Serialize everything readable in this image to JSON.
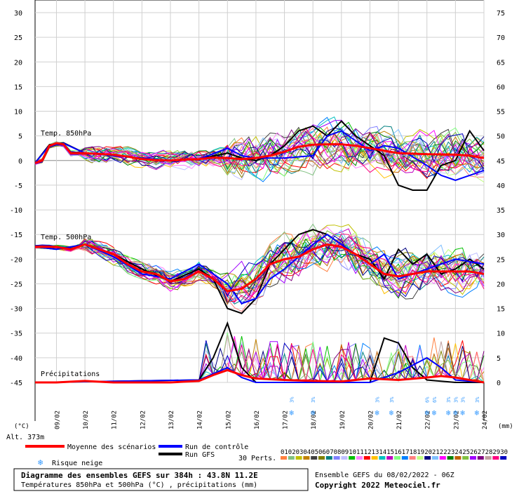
{
  "chart_data": {
    "type": "line",
    "left_axis": {
      "ticks": [
        30,
        25,
        20,
        15,
        10,
        5,
        0,
        -5,
        -10,
        -15,
        -20,
        -25,
        -30,
        -35,
        -40,
        -45
      ],
      "unit": "(°C)",
      "range": [
        -45,
        30
      ]
    },
    "right_axis": {
      "ticks": [
        75,
        70,
        65,
        60,
        55,
        50,
        45,
        40,
        35,
        30,
        25,
        20,
        15,
        10,
        5,
        0
      ],
      "unit": "(mm)",
      "range": [
        0,
        75
      ]
    },
    "dates": [
      "09/02",
      "10/02",
      "11/02",
      "12/02",
      "13/02",
      "14/02",
      "15/02",
      "16/02",
      "17/02",
      "18/02",
      "19/02",
      "20/02",
      "21/02",
      "22/02",
      "23/02",
      "24/02"
    ],
    "date_positions_days": [
      1,
      2,
      3,
      4,
      5,
      6,
      7,
      8,
      9,
      10,
      11,
      12,
      13,
      14,
      15,
      16
    ],
    "x_range_days": [
      0.25,
      16
    ],
    "panel_labels": {
      "t850": "Temp. 850hPa",
      "t500": "Temp. 500hPa",
      "precip": "Précipitations"
    },
    "series": [
      {
        "name": "Moyenne des scénarios",
        "color": "#ff0000",
        "t850": [
          [
            0.25,
            -0.5
          ],
          [
            0.5,
            0
          ],
          [
            0.75,
            3
          ],
          [
            1.0,
            3.5
          ],
          [
            1.25,
            3.3
          ],
          [
            1.5,
            1.5
          ],
          [
            2,
            1.5
          ],
          [
            3,
            1.2
          ],
          [
            3.5,
            0.8
          ],
          [
            4,
            0.3
          ],
          [
            4.5,
            0.1
          ],
          [
            5,
            0
          ],
          [
            5.5,
            0.2
          ],
          [
            6,
            0.3
          ],
          [
            6.5,
            0.6
          ],
          [
            7,
            0.5
          ],
          [
            7.5,
            0.3
          ],
          [
            8,
            0.5
          ],
          [
            8.5,
            1.0
          ],
          [
            9,
            1.8
          ],
          [
            9.5,
            2.8
          ],
          [
            10,
            3.2
          ],
          [
            10.5,
            3.3
          ],
          [
            11,
            3.3
          ],
          [
            11.5,
            3.0
          ],
          [
            12,
            2.5
          ],
          [
            12.5,
            2.0
          ],
          [
            13,
            1.5
          ],
          [
            14,
            1.3
          ],
          [
            15,
            1.2
          ],
          [
            15.5,
            1.0
          ],
          [
            16,
            0.5
          ]
        ],
        "t500": [
          [
            0.25,
            -17.5
          ],
          [
            1,
            -17.5
          ],
          [
            1.5,
            -18
          ],
          [
            2,
            -17
          ],
          [
            3,
            -19
          ],
          [
            3.5,
            -21
          ],
          [
            4,
            -22.5
          ],
          [
            4.5,
            -23
          ],
          [
            5,
            -24.5
          ],
          [
            5.5,
            -24
          ],
          [
            6,
            -22.5
          ],
          [
            6.5,
            -24
          ],
          [
            7,
            -26.5
          ],
          [
            7.5,
            -26
          ],
          [
            8,
            -24
          ],
          [
            8.5,
            -21
          ],
          [
            9,
            -20
          ],
          [
            9.5,
            -19.5
          ],
          [
            10,
            -18
          ],
          [
            10.5,
            -17
          ],
          [
            11,
            -17.5
          ],
          [
            11.5,
            -19
          ],
          [
            12,
            -21
          ],
          [
            12.5,
            -23
          ],
          [
            13,
            -23.5
          ],
          [
            13.5,
            -23
          ],
          [
            14,
            -22.5
          ],
          [
            14.5,
            -22.5
          ],
          [
            15,
            -22.5
          ],
          [
            15.5,
            -22.5
          ],
          [
            16,
            -23
          ]
        ],
        "precip": [
          [
            0.25,
            0
          ],
          [
            1,
            0
          ],
          [
            2,
            0.3
          ],
          [
            3,
            0
          ],
          [
            4,
            0
          ],
          [
            5,
            0
          ],
          [
            6,
            0.3
          ],
          [
            6.5,
            1.5
          ],
          [
            7,
            2.5
          ],
          [
            7.5,
            1.5
          ],
          [
            8,
            0.8
          ],
          [
            9,
            0.5
          ],
          [
            10,
            0.3
          ],
          [
            11,
            0.2
          ],
          [
            12,
            0.8
          ],
          [
            13,
            0.5
          ],
          [
            14,
            1.0
          ],
          [
            14.5,
            1.3
          ],
          [
            15,
            1.0
          ],
          [
            16,
            0
          ]
        ]
      },
      {
        "name": "Run de contrôle",
        "color": "#0000ff",
        "t850": [
          [
            0.25,
            -0.5
          ],
          [
            0.75,
            3
          ],
          [
            1.25,
            3.5
          ],
          [
            2,
            1.5
          ],
          [
            3,
            1.0
          ],
          [
            4,
            0.5
          ],
          [
            5,
            0
          ],
          [
            6,
            0.3
          ],
          [
            7,
            2.5
          ],
          [
            7.5,
            1
          ],
          [
            8,
            0.5
          ],
          [
            9,
            0.5
          ],
          [
            10,
            1
          ],
          [
            10.5,
            5
          ],
          [
            11,
            6
          ],
          [
            11.5,
            4
          ],
          [
            12,
            2
          ],
          [
            12.5,
            3
          ],
          [
            13,
            2.5
          ],
          [
            14,
            -1
          ],
          [
            14.5,
            -3
          ],
          [
            15,
            -4
          ],
          [
            15.5,
            -3
          ],
          [
            16,
            -2
          ]
        ],
        "t500": [
          [
            0.25,
            -17.5
          ],
          [
            1,
            -18
          ],
          [
            2,
            -17
          ],
          [
            3,
            -19.5
          ],
          [
            4,
            -23
          ],
          [
            5,
            -24
          ],
          [
            6,
            -21
          ],
          [
            7,
            -25
          ],
          [
            7.5,
            -29
          ],
          [
            8,
            -28
          ],
          [
            8.5,
            -24
          ],
          [
            9,
            -22
          ],
          [
            10,
            -17
          ],
          [
            10.5,
            -15
          ],
          [
            11,
            -17
          ],
          [
            12,
            -21
          ],
          [
            12.5,
            -19
          ],
          [
            13,
            -24
          ],
          [
            14,
            -22
          ],
          [
            15,
            -20
          ],
          [
            16,
            -21
          ]
        ],
        "precip": [
          [
            0.25,
            0
          ],
          [
            6,
            0.5
          ],
          [
            7,
            3
          ],
          [
            7.5,
            1
          ],
          [
            8,
            0
          ],
          [
            10,
            0
          ],
          [
            12,
            0
          ],
          [
            13,
            2
          ],
          [
            14,
            5
          ],
          [
            14.5,
            3
          ],
          [
            15,
            0.5
          ],
          [
            16,
            0
          ]
        ]
      },
      {
        "name": "Run GFS",
        "color": "#000000",
        "t850": [
          [
            0.25,
            -0.5
          ],
          [
            0.75,
            3.2
          ],
          [
            1.25,
            3.6
          ],
          [
            2,
            1.5
          ],
          [
            3,
            1.2
          ],
          [
            4,
            0.3
          ],
          [
            5,
            0
          ],
          [
            6,
            0.3
          ],
          [
            7,
            1.5
          ],
          [
            7.5,
            0.5
          ],
          [
            8,
            0
          ],
          [
            8.5,
            1
          ],
          [
            9,
            3
          ],
          [
            9.5,
            6
          ],
          [
            10,
            7
          ],
          [
            10.5,
            5
          ],
          [
            11,
            8
          ],
          [
            11.5,
            5
          ],
          [
            12,
            3
          ],
          [
            12.5,
            1
          ],
          [
            13,
            -5
          ],
          [
            13.5,
            -6
          ],
          [
            14,
            -6
          ],
          [
            14.5,
            -1
          ],
          [
            15,
            0
          ],
          [
            15.5,
            6
          ],
          [
            16,
            2
          ]
        ],
        "t500": [
          [
            0.25,
            -17.5
          ],
          [
            1,
            -18
          ],
          [
            2,
            -17
          ],
          [
            3,
            -19
          ],
          [
            4,
            -22
          ],
          [
            5,
            -24.5
          ],
          [
            6,
            -22
          ],
          [
            6.5,
            -24
          ],
          [
            7,
            -30
          ],
          [
            7.5,
            -31
          ],
          [
            8,
            -28
          ],
          [
            8.5,
            -21
          ],
          [
            9,
            -18
          ],
          [
            9.5,
            -15
          ],
          [
            10,
            -14
          ],
          [
            10.5,
            -15
          ],
          [
            11,
            -17
          ],
          [
            11.5,
            -19
          ],
          [
            12,
            -20
          ],
          [
            12.5,
            -24
          ],
          [
            13,
            -18
          ],
          [
            13.5,
            -21
          ],
          [
            14,
            -19
          ],
          [
            14.5,
            -23
          ],
          [
            15,
            -22
          ],
          [
            15.5,
            -20
          ],
          [
            16,
            -22
          ]
        ],
        "precip": [
          [
            0.25,
            0
          ],
          [
            6,
            0.5
          ],
          [
            6.5,
            5
          ],
          [
            7,
            12
          ],
          [
            7.5,
            3
          ],
          [
            8,
            0
          ],
          [
            10,
            0
          ],
          [
            12,
            0
          ],
          [
            12.5,
            9
          ],
          [
            13,
            8
          ],
          [
            13.5,
            3
          ],
          [
            14,
            0.5
          ],
          [
            15,
            0
          ],
          [
            16,
            0
          ]
        ]
      }
    ],
    "snow_risk": [
      {
        "day": 9.25,
        "pct": "3%"
      },
      {
        "day": 10.0,
        "pct": "3%"
      },
      {
        "day": 12.25,
        "pct": "3%"
      },
      {
        "day": 12.75,
        "pct": "3%"
      },
      {
        "day": 14.0,
        "pct": "6%"
      },
      {
        "day": 14.25,
        "pct": "6%"
      },
      {
        "day": 14.75,
        "pct": "3%"
      },
      {
        "day": 15.0,
        "pct": "3%"
      },
      {
        "day": 15.25,
        "pct": "3%"
      },
      {
        "day": 15.75,
        "pct": "3%"
      }
    ],
    "members": [
      "01",
      "02",
      "03",
      "04",
      "05",
      "06",
      "07",
      "08",
      "09",
      "10",
      "11",
      "12",
      "13",
      "14",
      "15",
      "16",
      "17",
      "18",
      "19",
      "20",
      "21",
      "22",
      "23",
      "24",
      "25",
      "26",
      "27",
      "28",
      "29",
      "30"
    ],
    "member_colors": [
      "#ff8040",
      "#80c080",
      "#c0c000",
      "#c08000",
      "#404040",
      "#808000",
      "#008080",
      "#8080ff",
      "#c0c0ff",
      "#00c000",
      "#ff80ff",
      "#ff0000",
      "#ffc000",
      "#00c0c0",
      "#c000c0",
      "#80ff80",
      "#0080ff",
      "#ff8080",
      "#c0ff80",
      "#000080",
      "#80c0ff",
      "#ff00ff",
      "#008000",
      "#c06000",
      "#80c040",
      "#a000ff",
      "#800080",
      "#c0a0a0",
      "#ff0080",
      "#0000c0"
    ]
  },
  "legend": {
    "alt": "Alt. 373m",
    "mean": "Moyenne des scénarios",
    "control": "Run de contrôle",
    "gfs": "Run GFS",
    "snow": "Risque neige",
    "perts": "30 Perts."
  },
  "footer": {
    "title": "Diagramme des ensembles GEFS sur 384h : 43.8N 11.2E",
    "subtitle": "Températures 850hPa et 500hPa (°C) , précipitations (mm)",
    "ensemble": "Ensemble GEFS du 08/02/2022 - 06Z",
    "copyright": "Copyright 2022 Meteociel.fr"
  },
  "colors": {
    "mean": "#ff0000",
    "control": "#0000ff",
    "gfs": "#000000",
    "grid": "#d0d0d0",
    "snow": "#3399ff"
  }
}
